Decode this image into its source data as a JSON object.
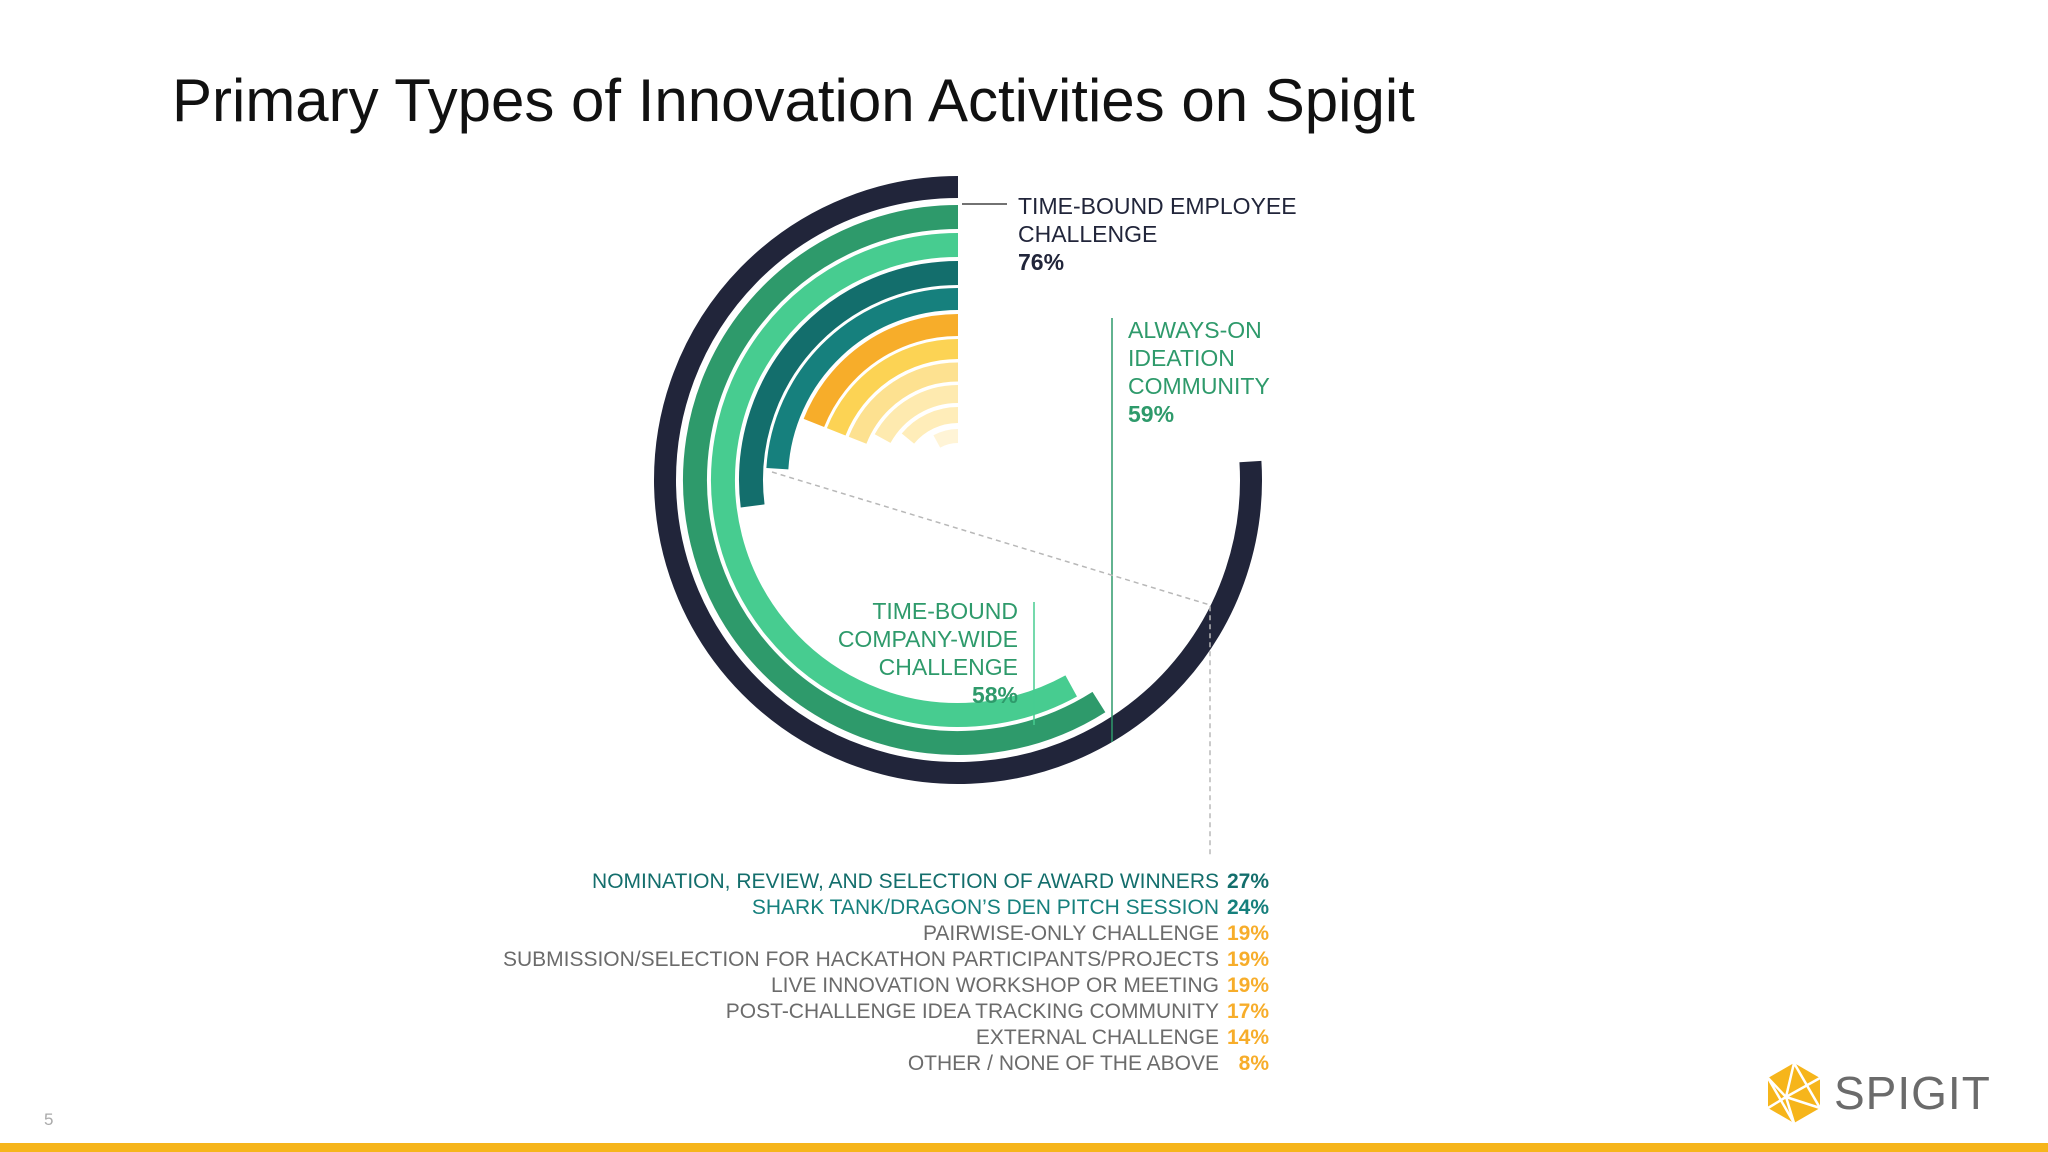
{
  "slide": {
    "title": "Primary Types of Innovation Activities on Spigit",
    "page_number": "5",
    "logo_text": "SPIGIT"
  },
  "colors": {
    "navy": "#21253a",
    "green": "#2e9a6b",
    "mint": "#47cc90",
    "teal_dark": "#136e6c",
    "teal": "#16807d",
    "orange": "#f7ad2a",
    "yellow": "#fcd354",
    "pale_1": "#fde190",
    "pale_2": "#feeaaf",
    "pale_3": "#ffedb9",
    "pale_4": "#fff4d6",
    "gray_text": "#6b6b6b",
    "footer": "#f6b51b"
  },
  "chart_data": {
    "type": "radial_bar",
    "series": [
      {
        "label": "TIME-BOUND EMPLOYEE CHALLENGE",
        "value": 76,
        "value_label": "76%"
      },
      {
        "label": "ALWAYS-ON IDEATION COMMUNITY",
        "value": 59,
        "value_label": "59%"
      },
      {
        "label": "TIME-BOUND COMPANY-WIDE CHALLENGE",
        "value": 58,
        "value_label": "58%"
      },
      {
        "label": "NOMINATION, REVIEW, AND SELECTION OF AWARD WINNERS",
        "value": 27,
        "value_label": "27%"
      },
      {
        "label": "SHARK TANK/DRAGON’S DEN  PITCH SESSION",
        "value": 24,
        "value_label": "24%"
      },
      {
        "label": "PAIRWISE-ONLY CHALLENGE",
        "value": 19,
        "value_label": "19%"
      },
      {
        "label": "SUBMISSION/SELECTION FOR HACKATHON PARTICIPANTS/PROJECTS",
        "value": 19,
        "value_label": "19%"
      },
      {
        "label": "LIVE INNOVATION WORKSHOP OR MEETING",
        "value": 19,
        "value_label": "19%"
      },
      {
        "label": "POST-CHALLENGE IDEA TRACKING COMMUNITY",
        "value": 17,
        "value_label": "17%"
      },
      {
        "label": "EXTERNAL CHALLENGE",
        "value": 14,
        "value_label": "14%"
      },
      {
        "label": "OTHER / NONE OF THE ABOVE",
        "value": 8,
        "value_label": "8%"
      }
    ],
    "callouts": [
      {
        "lines": [
          "TIME-BOUND EMPLOYEE",
          "CHALLENGE"
        ],
        "value": "76%"
      },
      {
        "lines": [
          "ALWAYS-ON",
          "IDEATION",
          "COMMUNITY"
        ],
        "value": "59%"
      },
      {
        "lines": [
          "TIME-BOUND",
          "COMPANY-WIDE",
          "CHALLENGE"
        ],
        "value": "58%"
      }
    ]
  }
}
